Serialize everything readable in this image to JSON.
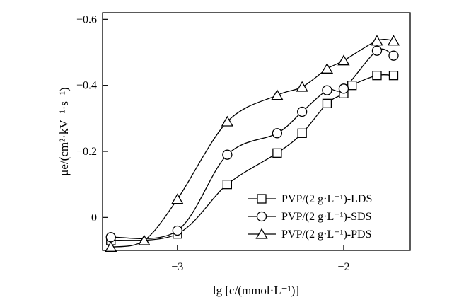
{
  "chart_data": {
    "type": "line",
    "xlabel": "lg [c/(mmol·L⁻¹)]",
    "ylabel": "μe/(cm²·kV⁻¹·s⁻¹)",
    "xlim": [
      -3.45,
      -1.6
    ],
    "ylim": [
      0.1,
      -0.62
    ],
    "x_ticks": [
      -3,
      -2
    ],
    "x_tick_labels": [
      "−3",
      "−2"
    ],
    "y_ticks": [
      0,
      -0.2,
      -0.4,
      -0.6
    ],
    "y_tick_labels": [
      "0",
      "−0.2",
      "−0.4",
      "−0.6"
    ],
    "legend_position": "lower-right",
    "series": [
      {
        "name": "PVP/(2 g·L⁻¹)-LDS",
        "marker": "square",
        "x": [
          -3.4,
          -3.0,
          -2.7,
          -2.4,
          -2.25,
          -2.1,
          -2.0,
          -1.95,
          -1.8,
          -1.7
        ],
        "y": [
          0.07,
          0.05,
          -0.1,
          -0.195,
          -0.255,
          -0.345,
          -0.375,
          -0.4,
          -0.43,
          -0.43
        ]
      },
      {
        "name": "PVP/(2 g·L⁻¹)-SDS",
        "marker": "circle",
        "x": [
          -3.4,
          -3.0,
          -2.7,
          -2.4,
          -2.25,
          -2.1,
          -2.0,
          -1.8,
          -1.7
        ],
        "y": [
          0.06,
          0.04,
          -0.19,
          -0.255,
          -0.32,
          -0.385,
          -0.39,
          -0.505,
          -0.49
        ]
      },
      {
        "name": "PVP/(2 g·L⁻¹)-PDS",
        "marker": "triangle",
        "x": [
          -3.4,
          -3.2,
          -3.0,
          -2.7,
          -2.4,
          -2.25,
          -2.1,
          -2.0,
          -1.8,
          -1.7
        ],
        "y": [
          0.09,
          0.07,
          -0.055,
          -0.29,
          -0.37,
          -0.395,
          -0.45,
          -0.475,
          -0.535,
          -0.535
        ]
      }
    ]
  }
}
